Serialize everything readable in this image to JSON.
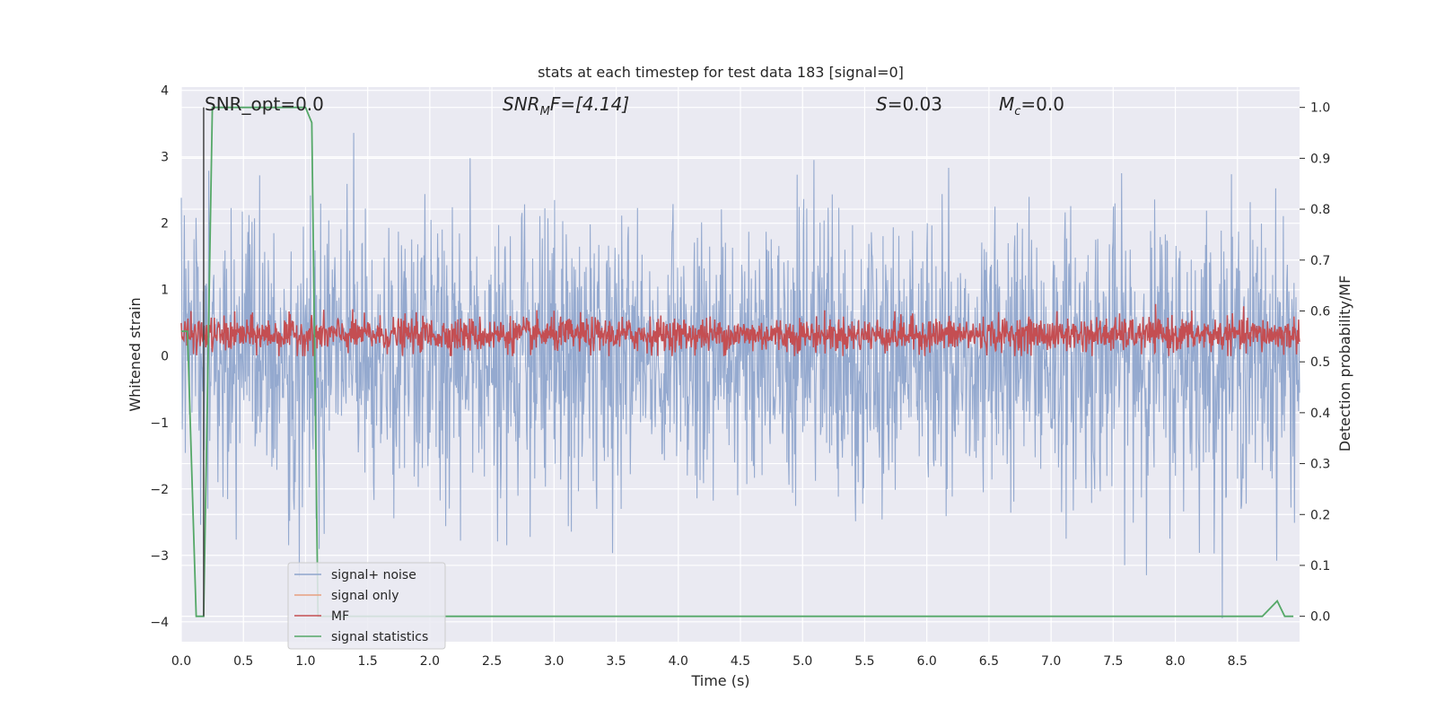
{
  "chart_data": {
    "type": "line",
    "title": "stats at each timestep for test data 183 [signal=0]",
    "xlabel": "Time (s)",
    "ylabel": "Whitened strain",
    "ylabel_right": "Detection probability/MF",
    "xlim": [
      0.0,
      9.0
    ],
    "ylim": [
      -4.3,
      4.05
    ],
    "ylim_right": [
      -0.05,
      1.04
    ],
    "xticks": [
      "0.0",
      "0.5",
      "1.0",
      "1.5",
      "2.0",
      "2.5",
      "3.0",
      "3.5",
      "4.0",
      "4.5",
      "5.0",
      "5.5",
      "6.0",
      "6.5",
      "7.0",
      "7.5",
      "8.0",
      "8.5"
    ],
    "yticks_left": [
      "4",
      "3",
      "2",
      "1",
      "0",
      "−1",
      "−2",
      "−3",
      "−4"
    ],
    "yticks_right": [
      "1.0",
      "0.9",
      "0.8",
      "0.7",
      "0.6",
      "0.5",
      "0.4",
      "0.3",
      "0.2",
      "0.1",
      "0.0"
    ],
    "annotations": {
      "snr_opt": "SNR_opt=0.0",
      "snr_mf_main": "SNR",
      "snr_mf_sub": "M",
      "snr_mf_rest": "F=[4.14]",
      "s_main": "S",
      "s_rest": "=0.03",
      "mc_main": "M",
      "mc_sub": "c",
      "mc_rest": "=0.0"
    },
    "legend_position": "lower-left",
    "series": [
      {
        "name": "signal+ noise",
        "color": "#8fa5cc",
        "description_range": [
          -4.0,
          3.7
        ]
      },
      {
        "name": "signal only",
        "color": "#e8a07f"
      },
      {
        "name": "MF",
        "color": "#c44e52"
      },
      {
        "name": "signal statistics",
        "color": "#55a868",
        "axis": "right",
        "x": [
          0.0,
          0.05,
          0.12,
          0.18,
          0.25,
          0.3,
          1.0,
          1.05,
          1.1,
          1.15,
          1.2,
          8.5,
          8.7,
          8.82,
          8.88,
          8.95
        ],
        "y": [
          0.56,
          0.56,
          0.0,
          0.0,
          1.0,
          1.0,
          1.0,
          0.97,
          0.0,
          0.0,
          0.0,
          0.0,
          0.0,
          0.03,
          0.0,
          0.0
        ]
      }
    ],
    "marker_line": {
      "x": 0.18,
      "color": "#444444"
    },
    "grid": true
  }
}
